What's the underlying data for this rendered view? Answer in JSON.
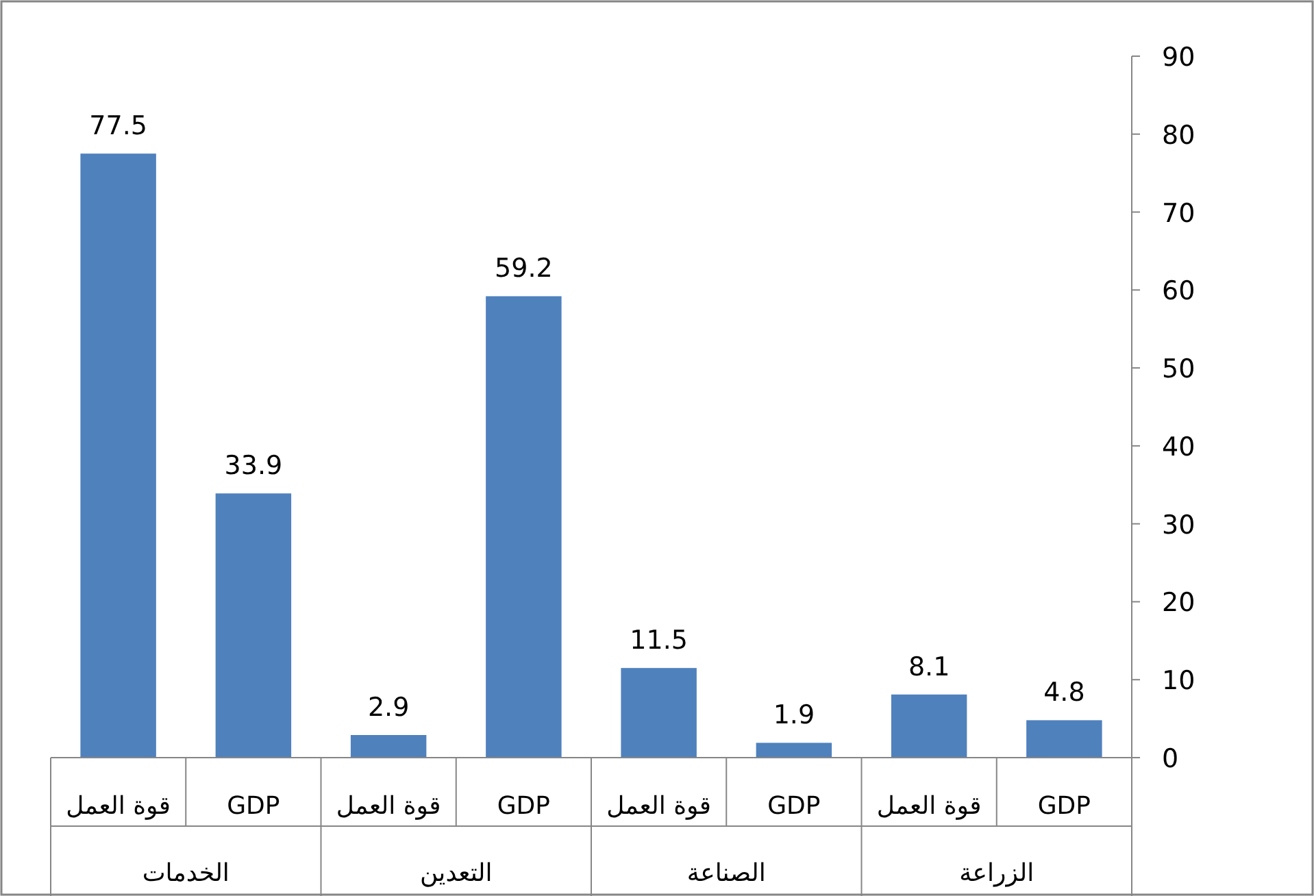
{
  "chart_data": {
    "type": "bar",
    "categories": [
      "قوة العمل",
      "GDP",
      "قوة العمل",
      "GDP",
      "قوة العمل",
      "GDP",
      "قوة العمل",
      "GDP"
    ],
    "values": [
      77.5,
      33.9,
      2.9,
      59.2,
      11.5,
      1.9,
      8.1,
      4.8
    ],
    "color": "#4f81bd",
    "annotations": [
      "الخدمات",
      "التعدين",
      "الصناعة",
      "الزراعة"
    ],
    "ylim": [
      0,
      90
    ],
    "yticks": [
      0,
      10,
      20,
      30,
      40,
      50,
      60,
      70,
      80,
      90
    ],
    "data_labels": true
  }
}
